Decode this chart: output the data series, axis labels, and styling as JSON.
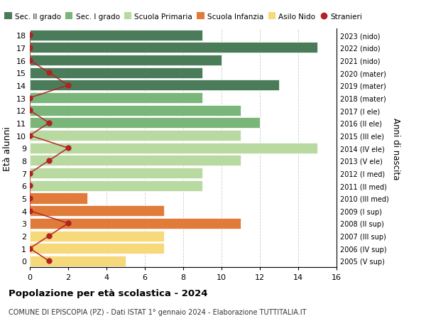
{
  "ages": [
    18,
    17,
    16,
    15,
    14,
    13,
    12,
    11,
    10,
    9,
    8,
    7,
    6,
    5,
    4,
    3,
    2,
    1,
    0
  ],
  "years": [
    "2005 (V sup)",
    "2006 (IV sup)",
    "2007 (III sup)",
    "2008 (II sup)",
    "2009 (I sup)",
    "2010 (III med)",
    "2011 (II med)",
    "2012 (I med)",
    "2013 (V ele)",
    "2014 (IV ele)",
    "2015 (III ele)",
    "2016 (II ele)",
    "2017 (I ele)",
    "2018 (mater)",
    "2019 (mater)",
    "2020 (mater)",
    "2021 (nido)",
    "2022 (nido)",
    "2023 (nido)"
  ],
  "bar_values": [
    9,
    15,
    10,
    9,
    13,
    9,
    11,
    12,
    11,
    15,
    11,
    9,
    9,
    3,
    7,
    11,
    7,
    7,
    5
  ],
  "bar_colors": [
    "#4a7c59",
    "#4a7c59",
    "#4a7c59",
    "#4a7c59",
    "#4a7c59",
    "#7ab57a",
    "#7ab57a",
    "#7ab57a",
    "#b8d9a0",
    "#b8d9a0",
    "#b8d9a0",
    "#b8d9a0",
    "#b8d9a0",
    "#e07b39",
    "#e07b39",
    "#e07b39",
    "#f5d97a",
    "#f5d97a",
    "#f5d97a"
  ],
  "stranieri_values": [
    0,
    0,
    0,
    1,
    2,
    0,
    0,
    1,
    0,
    2,
    1,
    0,
    0,
    0,
    0,
    2,
    1,
    0,
    1
  ],
  "legend_labels": [
    "Sec. II grado",
    "Sec. I grado",
    "Scuola Primaria",
    "Scuola Infanzia",
    "Asilo Nido",
    "Stranieri"
  ],
  "legend_colors": [
    "#4a7c59",
    "#7ab57a",
    "#b8d9a0",
    "#e07b39",
    "#f5d97a",
    "#b22222"
  ],
  "title": "Popolazione per età scolastica - 2024",
  "subtitle": "COMUNE DI EPISCOPIA (PZ) - Dati ISTAT 1° gennaio 2024 - Elaborazione TUTTITALIA.IT",
  "ylabel_left": "Età alunni",
  "ylabel_right": "Anni di nascita",
  "xlim": [
    0,
    16
  ],
  "background_color": "#ffffff",
  "grid_color": "#cccccc",
  "stranieri_color": "#b22222"
}
